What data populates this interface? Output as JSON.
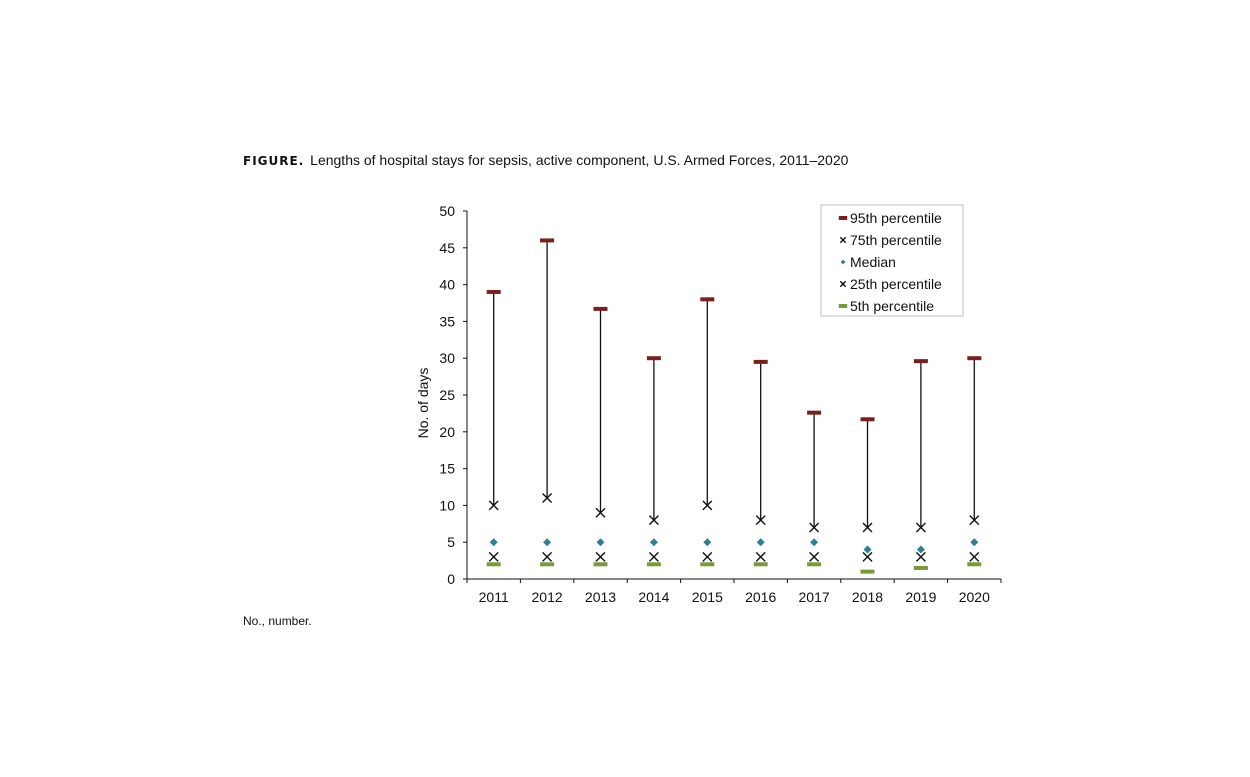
{
  "figure": {
    "label": "FIGURE.",
    "title": "Lengths of hospital stays for sepsis, active component, U.S. Armed Forces, 2011–2020",
    "footnote": "No., number."
  },
  "colors": {
    "p95": "#7a1f1f",
    "median": "#2f7f93",
    "p5": "#7a9a3a",
    "marker_x": "#111111",
    "range_line": "#111111"
  },
  "chart_data": {
    "type": "scatter",
    "title": "",
    "xlabel": "",
    "ylabel": "No. of days",
    "ylim": [
      0,
      50
    ],
    "yticks": [
      0,
      5,
      10,
      15,
      20,
      25,
      30,
      35,
      40,
      45,
      50
    ],
    "categories": [
      "2011",
      "2012",
      "2013",
      "2014",
      "2015",
      "2016",
      "2017",
      "2018",
      "2019",
      "2020"
    ],
    "grid": false,
    "legend_position": "top-right",
    "series": [
      {
        "name": "95th percentile",
        "key": "p95",
        "marker": "dash",
        "values": [
          39,
          46,
          36.7,
          30,
          38,
          29.5,
          22.6,
          21.7,
          29.6,
          30
        ]
      },
      {
        "name": "75th percentile",
        "key": "p75",
        "marker": "x",
        "values": [
          10,
          11,
          9,
          8,
          10,
          8,
          7,
          7,
          7,
          8
        ]
      },
      {
        "name": "Median",
        "key": "median",
        "marker": "diamond",
        "values": [
          5,
          5,
          5,
          5,
          5,
          5,
          5,
          4,
          4,
          5
        ]
      },
      {
        "name": "25th percentile",
        "key": "p25",
        "marker": "x",
        "values": [
          3,
          3,
          3,
          3,
          3,
          3,
          3,
          3,
          3,
          3
        ]
      },
      {
        "name": "5th percentile",
        "key": "p5",
        "marker": "dash",
        "values": [
          2,
          2,
          2,
          2,
          2,
          2,
          2,
          1,
          1.5,
          2
        ]
      }
    ]
  }
}
